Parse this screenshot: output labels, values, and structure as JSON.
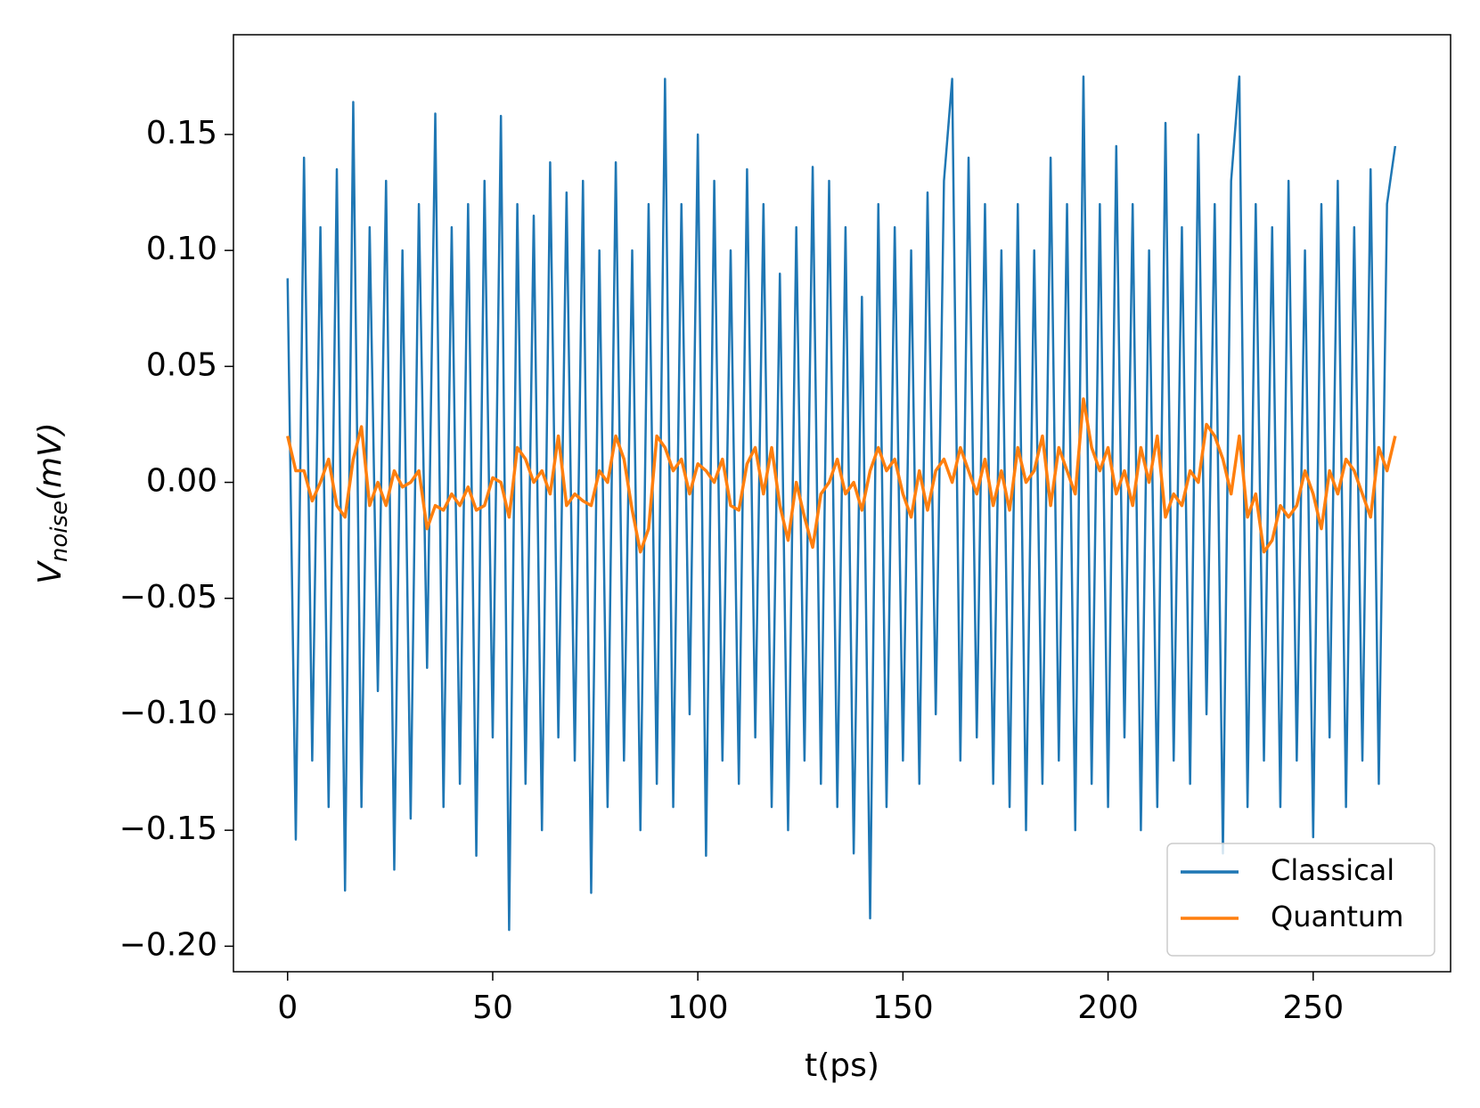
{
  "chart_data": {
    "type": "line",
    "x_label": "t(ps)",
    "y_label": {
      "main": "V",
      "subscript": "noise",
      "rest": "(mV)"
    },
    "x": [
      0,
      2,
      4,
      6,
      8,
      10,
      12,
      14,
      16,
      18,
      20,
      22,
      24,
      26,
      28,
      30,
      32,
      34,
      36,
      38,
      40,
      42,
      44,
      46,
      48,
      50,
      52,
      54,
      56,
      58,
      60,
      62,
      64,
      66,
      68,
      70,
      72,
      74,
      76,
      78,
      80,
      82,
      84,
      86,
      88,
      90,
      92,
      94,
      96,
      98,
      100,
      102,
      104,
      106,
      108,
      110,
      112,
      114,
      116,
      118,
      120,
      122,
      124,
      126,
      128,
      130,
      132,
      134,
      136,
      138,
      140,
      142,
      144,
      146,
      148,
      150,
      152,
      154,
      156,
      158,
      160,
      162,
      164,
      166,
      168,
      170,
      172,
      174,
      176,
      178,
      180,
      182,
      184,
      186,
      188,
      190,
      192,
      194,
      196,
      198,
      200,
      202,
      204,
      206,
      208,
      210,
      212,
      214,
      216,
      218,
      220,
      222,
      224,
      226,
      228,
      230,
      232,
      234,
      236,
      238,
      240,
      242,
      244,
      246,
      248,
      250,
      252,
      254,
      256,
      258,
      260,
      262,
      264,
      266,
      268,
      270
    ],
    "series": [
      {
        "name": "Classical",
        "color": "#1f77b4",
        "values": [
          0.088,
          -0.154,
          0.14,
          -0.12,
          0.11,
          -0.14,
          0.135,
          -0.176,
          0.164,
          -0.14,
          0.11,
          -0.09,
          0.13,
          -0.167,
          0.1,
          -0.145,
          0.12,
          -0.08,
          0.159,
          -0.14,
          0.11,
          -0.13,
          0.12,
          -0.161,
          0.13,
          -0.11,
          0.158,
          -0.193,
          0.12,
          -0.13,
          0.115,
          -0.15,
          0.138,
          -0.11,
          0.125,
          -0.12,
          0.13,
          -0.177,
          0.1,
          -0.14,
          0.138,
          -0.12,
          0.1,
          -0.15,
          0.12,
          -0.13,
          0.174,
          -0.14,
          0.12,
          -0.1,
          0.15,
          -0.161,
          0.13,
          -0.12,
          0.1,
          -0.13,
          0.135,
          -0.11,
          0.12,
          -0.14,
          0.09,
          -0.15,
          0.11,
          -0.12,
          0.136,
          -0.13,
          0.13,
          -0.14,
          0.11,
          -0.16,
          0.08,
          -0.188,
          0.12,
          -0.14,
          0.11,
          -0.12,
          0.1,
          -0.13,
          0.125,
          -0.1,
          0.13,
          0.174,
          -0.12,
          0.14,
          -0.11,
          0.12,
          -0.13,
          0.1,
          -0.14,
          0.12,
          -0.15,
          0.1,
          -0.13,
          0.14,
          -0.12,
          0.12,
          -0.15,
          0.175,
          -0.13,
          0.12,
          -0.14,
          0.145,
          -0.11,
          0.12,
          -0.15,
          0.1,
          -0.14,
          0.155,
          -0.12,
          0.11,
          -0.13,
          0.15,
          -0.1,
          0.12,
          -0.16,
          0.13,
          0.175,
          -0.14,
          0.12,
          -0.12,
          0.11,
          -0.14,
          0.13,
          -0.12,
          0.1,
          -0.153,
          0.12,
          -0.11,
          0.13,
          -0.14,
          0.11,
          -0.12,
          0.135,
          -0.13,
          0.12,
          0.145
        ]
      },
      {
        "name": "Quantum",
        "color": "#ff7f0e",
        "values": [
          0.02,
          0.005,
          0.005,
          -0.008,
          0.0,
          0.01,
          -0.01,
          -0.015,
          0.01,
          0.024,
          -0.01,
          0.0,
          -0.01,
          0.005,
          -0.002,
          0.0,
          0.005,
          -0.02,
          -0.01,
          -0.012,
          -0.005,
          -0.01,
          -0.002,
          -0.012,
          -0.01,
          0.002,
          0.0,
          -0.015,
          0.015,
          0.01,
          0.0,
          0.005,
          -0.005,
          0.02,
          -0.01,
          -0.005,
          -0.008,
          -0.01,
          0.005,
          0.0,
          0.02,
          0.01,
          -0.012,
          -0.03,
          -0.02,
          0.02,
          0.015,
          0.005,
          0.01,
          -0.005,
          0.008,
          0.005,
          0.0,
          0.01,
          -0.01,
          -0.012,
          0.008,
          0.015,
          -0.005,
          0.015,
          -0.01,
          -0.025,
          0.0,
          -0.015,
          -0.028,
          -0.005,
          0.0,
          0.01,
          -0.005,
          0.0,
          -0.012,
          0.005,
          0.015,
          0.005,
          0.01,
          -0.005,
          -0.015,
          0.005,
          -0.012,
          0.005,
          0.01,
          0.0,
          0.015,
          0.005,
          -0.005,
          0.01,
          -0.01,
          0.005,
          -0.012,
          0.015,
          0.0,
          0.005,
          0.02,
          -0.01,
          0.015,
          0.005,
          -0.005,
          0.036,
          0.015,
          0.005,
          0.015,
          -0.005,
          0.005,
          -0.01,
          0.015,
          0.0,
          0.02,
          -0.015,
          -0.005,
          -0.01,
          0.005,
          0.0,
          0.025,
          0.02,
          0.01,
          -0.005,
          0.02,
          -0.015,
          -0.005,
          -0.03,
          -0.025,
          -0.01,
          -0.015,
          -0.01,
          0.005,
          -0.005,
          -0.02,
          0.005,
          -0.005,
          0.01,
          0.005,
          -0.005,
          -0.015,
          0.015,
          0.005,
          0.02
        ]
      }
    ],
    "xlim": [
      -13.2,
      283.5
    ],
    "ylim": [
      -0.211,
      0.193
    ],
    "xticks": [
      0,
      50,
      100,
      150,
      200,
      250
    ],
    "yticks": [
      {
        "value": -0.2,
        "label": "−0.20"
      },
      {
        "value": -0.15,
        "label": "−0.15"
      },
      {
        "value": -0.1,
        "label": "−0.10"
      },
      {
        "value": -0.05,
        "label": "−0.05"
      },
      {
        "value": 0,
        "label": "0.00"
      },
      0.05,
      {
        "value": 0.1,
        "label": "0.10"
      },
      0.15
    ],
    "grid": false,
    "legend": "lower right"
  }
}
